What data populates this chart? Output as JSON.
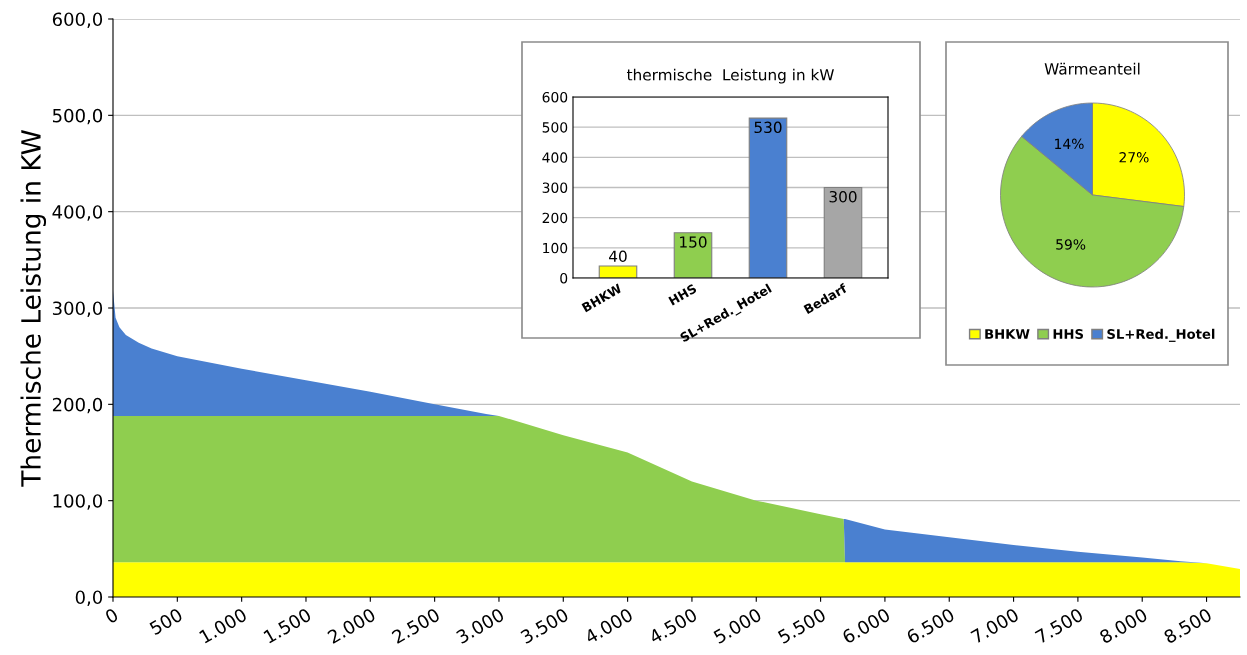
{
  "chart_data": [
    {
      "type": "area",
      "stacked": true,
      "ylabel": "Thermische Leistung in KW",
      "x": [
        0,
        20,
        50,
        100,
        200,
        300,
        500,
        1000,
        1500,
        2000,
        2500,
        2900,
        3000,
        3500,
        4000,
        4500,
        5000,
        5500,
        5680,
        5690,
        6000,
        6500,
        7000,
        7500,
        8000,
        8300,
        8500,
        8760
      ],
      "series": [
        {
          "color": "#ffff00",
          "values": [
            36,
            36,
            36,
            36,
            36,
            36,
            36,
            36,
            36,
            36,
            36,
            36,
            36,
            36,
            36,
            36,
            36,
            36,
            36,
            36,
            36,
            36,
            36,
            36,
            36,
            36,
            35,
            29
          ]
        },
        {
          "color": "#8fce4f",
          "values": [
            152,
            152,
            152,
            152,
            152,
            152,
            152,
            152,
            152,
            152,
            152,
            152,
            152,
            132,
            114,
            84,
            64,
            50,
            45,
            0,
            0,
            0,
            0,
            0,
            0,
            0,
            0,
            0
          ]
        },
        {
          "color": "#4a80d0",
          "values": [
            130,
            102,
            92,
            84,
            76,
            70,
            62,
            49,
            37,
            25,
            12,
            2,
            0,
            0,
            0,
            0,
            0,
            0,
            0,
            45,
            34,
            26,
            18,
            11,
            5,
            1,
            0,
            0
          ]
        }
      ],
      "xlim": [
        0,
        8760
      ],
      "xticks": [
        0,
        500,
        {
          "value": 1000,
          "label": "1.000"
        },
        {
          "value": 1500,
          "label": "1.500"
        },
        {
          "value": 2000,
          "label": "2.000"
        },
        {
          "value": 2500,
          "label": "2.500"
        },
        {
          "value": 3000,
          "label": "3.000"
        },
        {
          "value": 3500,
          "label": "3.500"
        },
        {
          "value": 4000,
          "label": "4.000"
        },
        {
          "value": 4500,
          "label": "4.500"
        },
        {
          "value": 5000,
          "label": "5.000"
        },
        {
          "value": 5500,
          "label": "5.500"
        },
        {
          "value": 6000,
          "label": "6.000"
        },
        {
          "value": 6500,
          "label": "6.500"
        },
        {
          "value": 7000,
          "label": "7.000"
        },
        {
          "value": 7500,
          "label": "7.500"
        },
        {
          "value": 8000,
          "label": "8.000"
        },
        {
          "value": 8500,
          "label": "8.500"
        }
      ],
      "ylim": [
        0,
        600
      ],
      "yticks": [
        {
          "value": 0,
          "label": "0,0"
        },
        {
          "value": 100,
          "label": "100,0"
        },
        {
          "value": 200,
          "label": "200,0"
        },
        {
          "value": 300,
          "label": "300,0"
        },
        {
          "value": 400,
          "label": "400,0"
        },
        {
          "value": 500,
          "label": "500,0"
        },
        {
          "value": 600,
          "label": "600,0"
        }
      ],
      "grid": "y"
    },
    {
      "type": "bar",
      "title": "thermische  Leistung in kW",
      "categories": [
        "BHKW",
        "HHS",
        "SL+Red._Hotel",
        "Bedarf"
      ],
      "values": [
        40,
        150,
        530,
        300
      ],
      "colors": [
        "#ffff00",
        "#8fce4f",
        "#4a80d0",
        "#a6a6a6"
      ],
      "ylim": [
        0,
        600
      ],
      "yticks": [
        0,
        100,
        200,
        300,
        400,
        500,
        600
      ],
      "data_labels": true,
      "grid": "y"
    },
    {
      "type": "pie",
      "title": "Wärmeanteil",
      "categories": [
        "BHKW",
        "HHS",
        "SL+Red._Hotel"
      ],
      "values": [
        27,
        59,
        14
      ],
      "colors": [
        "#ffff00",
        "#8fce4f",
        "#4a80d0"
      ],
      "value_labels": [
        "27%",
        "59%",
        "14%"
      ],
      "legend": "bottom"
    }
  ]
}
